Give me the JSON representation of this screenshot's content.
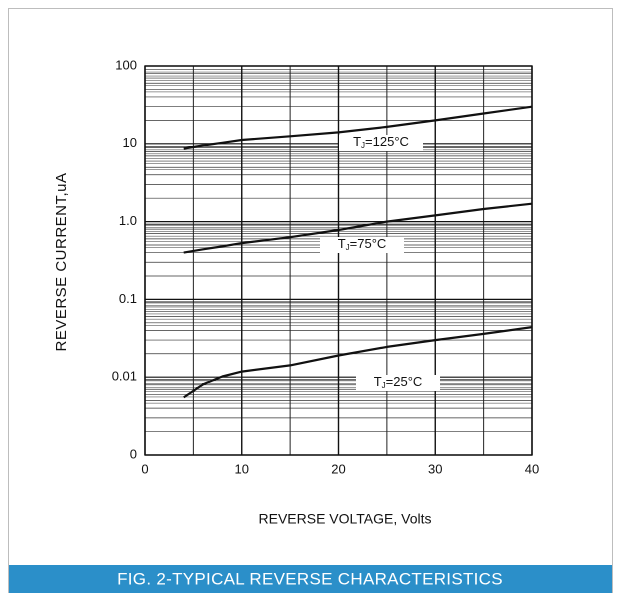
{
  "chart_data": {
    "type": "line",
    "title": "FIG. 2-TYPICAL REVERSE CHARACTERISTICS",
    "x_label": "REVERSE VOLTAGE, Volts",
    "y_label": "REVERSE CURRENT,uA",
    "log_y": true,
    "grid": true,
    "xlim": [
      0,
      40
    ],
    "xticks": [
      0,
      10,
      20,
      30,
      40
    ],
    "ylim": [
      0.001,
      100
    ],
    "yticks": [
      {
        "value": 0.001,
        "label": "0"
      },
      0.01,
      0.1,
      {
        "value": 1,
        "label": "1.0"
      },
      10,
      100
    ],
    "x": [
      4,
      6,
      8,
      10,
      15,
      20,
      25,
      30,
      35,
      40
    ],
    "series": [
      {
        "name": {
          "base": "T",
          "sub": "J",
          "rest": "=125°C"
        },
        "color": "#111111",
        "values": [
          8.7,
          9.5,
          10.3,
          11.2,
          12.5,
          14,
          16.5,
          20,
          24.5,
          30
        ]
      },
      {
        "name": {
          "base": "T",
          "sub": "J",
          "rest": "=75°C"
        },
        "color": "#111111",
        "values": [
          0.4,
          0.44,
          0.48,
          0.53,
          0.63,
          0.78,
          1.0,
          1.2,
          1.45,
          1.7
        ]
      },
      {
        "name": {
          "base": "T",
          "sub": "J",
          "rest": "=25°C"
        },
        "color": "#111111",
        "values": [
          0.0055,
          0.0081,
          0.0102,
          0.0118,
          0.0142,
          0.019,
          0.0245,
          0.03,
          0.036,
          0.044
        ]
      }
    ]
  }
}
